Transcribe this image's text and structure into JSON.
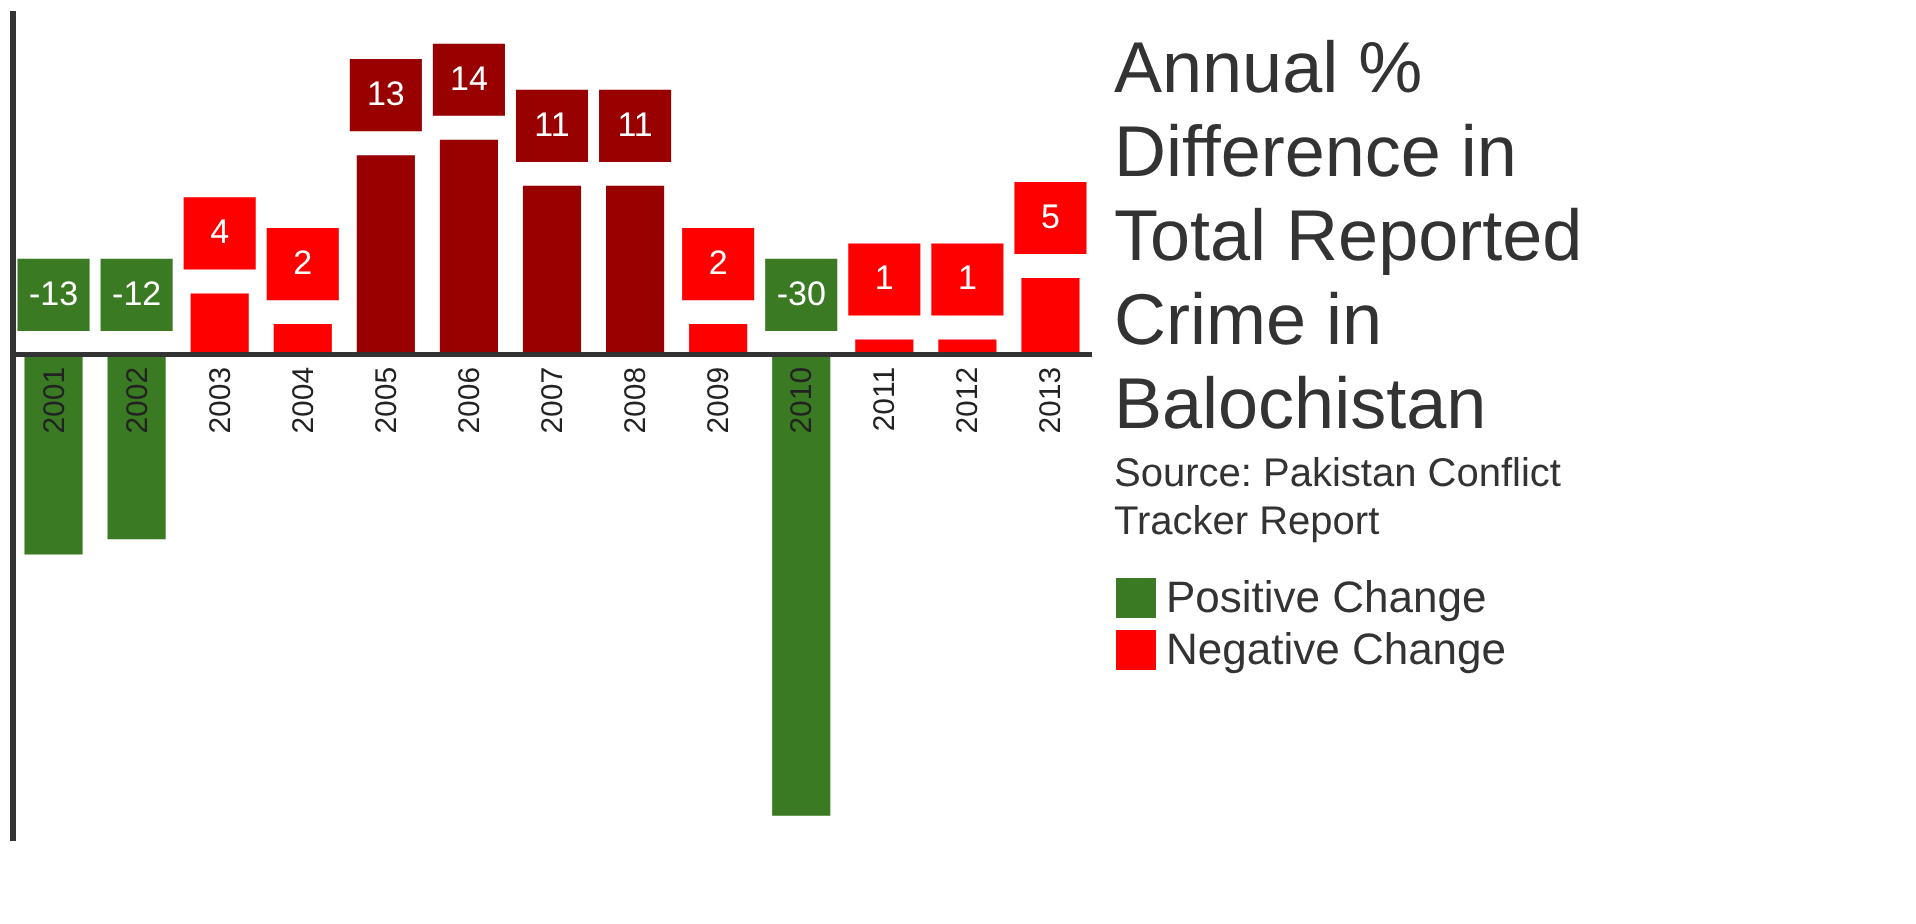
{
  "chart_data": {
    "type": "bar",
    "title": "Annual % Difference in Total Reported Crime in Balochistan",
    "annotations": [
      "Source: Pakistan Conflict Tracker Report"
    ],
    "categories": [
      "2001",
      "2002",
      "2003",
      "2004",
      "2005",
      "2006",
      "2007",
      "2008",
      "2009",
      "2010",
      "2011",
      "2012",
      "2013"
    ],
    "series": [
      {
        "name": "Positive Change",
        "color": "#3a7a23",
        "values": [
          -13,
          -12,
          null,
          null,
          null,
          null,
          null,
          null,
          null,
          -30,
          null,
          null,
          null
        ],
        "colors": [
          "#3a7a23",
          "#3a7a23",
          null,
          null,
          null,
          null,
          null,
          null,
          null,
          "#3a7a23",
          null,
          null,
          null
        ]
      },
      {
        "name": "Negative Change",
        "color": "#ff0000",
        "values": [
          null,
          null,
          4,
          2,
          13,
          14,
          11,
          11,
          2,
          null,
          1,
          1,
          5
        ],
        "colors": [
          null,
          null,
          "#ff0000",
          "#ff0000",
          "#990000",
          "#990000",
          "#990000",
          "#990000",
          "#ff0000",
          null,
          "#ff0000",
          "#ff0000",
          "#ff0000"
        ]
      }
    ],
    "data_labels": true,
    "legend": "right",
    "grid": false
  }
}
